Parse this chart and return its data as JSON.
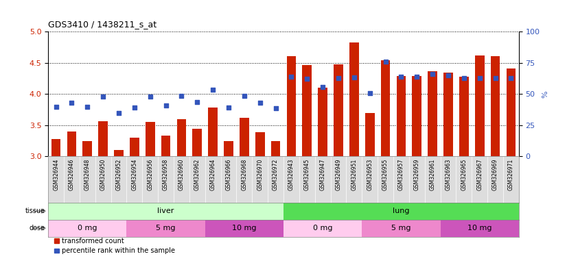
{
  "title": "GDS3410 / 1438211_s_at",
  "samples": [
    "GSM326944",
    "GSM326946",
    "GSM326948",
    "GSM326950",
    "GSM326952",
    "GSM326954",
    "GSM326956",
    "GSM326958",
    "GSM326960",
    "GSM326962",
    "GSM326964",
    "GSM326966",
    "GSM326968",
    "GSM326970",
    "GSM326972",
    "GSM326943",
    "GSM326945",
    "GSM326947",
    "GSM326949",
    "GSM326951",
    "GSM326953",
    "GSM326955",
    "GSM326957",
    "GSM326959",
    "GSM326961",
    "GSM326963",
    "GSM326965",
    "GSM326967",
    "GSM326969",
    "GSM326971"
  ],
  "transformed_count": [
    3.28,
    3.4,
    3.25,
    3.56,
    3.1,
    3.3,
    3.55,
    3.33,
    3.6,
    3.44,
    3.78,
    3.25,
    3.62,
    3.39,
    3.25,
    4.61,
    4.46,
    4.1,
    4.48,
    4.83,
    3.7,
    4.54,
    4.29,
    4.29,
    4.37,
    4.34,
    4.28,
    4.62,
    4.61,
    4.41
  ],
  "percentile_rank": [
    3.79,
    3.86,
    3.79,
    3.96,
    3.7,
    3.78,
    3.96,
    3.82,
    3.97,
    3.87,
    4.07,
    3.78,
    3.97,
    3.86,
    3.77,
    4.28,
    4.24,
    4.11,
    4.25,
    4.27,
    4.01,
    4.52,
    4.28,
    4.28,
    4.32,
    4.3,
    4.25,
    4.26,
    4.26,
    4.25
  ],
  "ylim": [
    3.0,
    5.0
  ],
  "yticks": [
    3.0,
    3.5,
    4.0,
    4.5,
    5.0
  ],
  "y2lim": [
    0,
    100
  ],
  "y2ticks": [
    0,
    25,
    50,
    75,
    100
  ],
  "bar_color": "#cc2200",
  "dot_color": "#3355bb",
  "tissue_groups": [
    {
      "label": "liver",
      "start": 0,
      "end": 15,
      "color": "#ccffcc"
    },
    {
      "label": "lung",
      "start": 15,
      "end": 30,
      "color": "#55dd55"
    }
  ],
  "dose_groups": [
    {
      "label": "0 mg",
      "start": 0,
      "end": 5,
      "color": "#ffccee"
    },
    {
      "label": "5 mg",
      "start": 5,
      "end": 10,
      "color": "#ee88cc"
    },
    {
      "label": "10 mg",
      "start": 10,
      "end": 15,
      "color": "#cc55bb"
    },
    {
      "label": "0 mg",
      "start": 15,
      "end": 20,
      "color": "#ffccee"
    },
    {
      "label": "5 mg",
      "start": 20,
      "end": 25,
      "color": "#ee88cc"
    },
    {
      "label": "10 mg",
      "start": 25,
      "end": 30,
      "color": "#cc55bb"
    }
  ],
  "legend_items": [
    {
      "label": "transformed count",
      "color": "#cc2200"
    },
    {
      "label": "percentile rank within the sample",
      "color": "#3355bb"
    }
  ],
  "ylabel_left_color": "#cc2200",
  "ylabel_right_color": "#3355bb",
  "base_value": 3.0,
  "xticklabel_bg": "#dddddd",
  "tissue_label_color": "#888888",
  "dose_label_color": "#888888"
}
